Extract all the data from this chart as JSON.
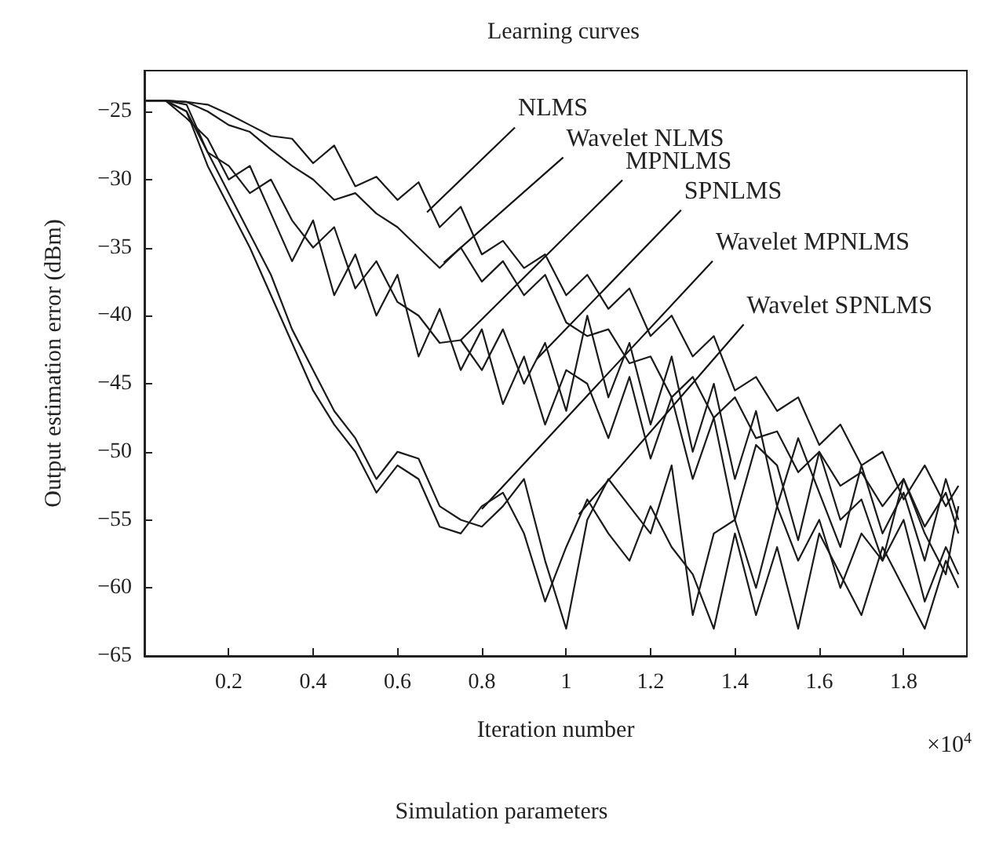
{
  "chart_data": {
    "type": "line",
    "title": "Learning curves",
    "xlabel": "Iteration number",
    "ylabel": "Output estimation error (dBm)",
    "x": [
      0,
      0.05,
      0.1,
      0.15,
      0.2,
      0.25,
      0.3,
      0.35,
      0.4,
      0.45,
      0.5,
      0.55,
      0.6,
      0.65,
      0.7,
      0.75,
      0.8,
      0.85,
      0.9,
      0.95,
      1.0,
      1.05,
      1.1,
      1.15,
      1.2,
      1.25,
      1.3,
      1.35,
      1.4,
      1.45,
      1.5,
      1.55,
      1.6,
      1.65,
      1.7,
      1.75,
      1.8,
      1.85,
      1.9,
      1.93
    ],
    "series": [
      {
        "color": "#1a1a1a",
        "values": [
          -24.2,
          -24.2,
          -24.3,
          -24.5,
          -25.2,
          -26.0,
          -26.8,
          -27.0,
          -28.8,
          -27.5,
          -30.5,
          -29.8,
          -31.5,
          -30.2,
          -33.5,
          -32.0,
          -35.5,
          -34.5,
          -36.5,
          -35.5,
          -38.5,
          -37.0,
          -39.5,
          -38.0,
          -41.5,
          -40.0,
          -43.0,
          -41.5,
          -45.5,
          -44.5,
          -47.0,
          -46.0,
          -49.5,
          -48.0,
          -51.0,
          -50.0,
          -53.5,
          -51.0,
          -54.0,
          -52.5
        ]
      },
      {
        "color": "#1a1a1a",
        "values": [
          -24.2,
          -24.2,
          -24.3,
          -25.0,
          -26.0,
          -26.5,
          -27.8,
          -29.0,
          -30.0,
          -31.5,
          -31.0,
          -32.5,
          -33.5,
          -35.0,
          -36.5,
          -35.0,
          -37.5,
          -36.0,
          -38.5,
          -37.0,
          -40.5,
          -41.5,
          -41.0,
          -43.5,
          -43.0,
          -46.0,
          -44.5,
          -47.5,
          -46.0,
          -49.0,
          -48.5,
          -51.5,
          -50.0,
          -52.5,
          -51.5,
          -54.0,
          -52.0,
          -55.5,
          -53.0,
          -56.0
        ]
      },
      {
        "color": "#1a1a1a",
        "values": [
          -24.2,
          -24.2,
          -25.0,
          -28.0,
          -29.0,
          -31.0,
          -30.0,
          -33.0,
          -35.0,
          -33.5,
          -38.0,
          -36.0,
          -39.0,
          -40.0,
          -42.0,
          -41.8,
          -44.0,
          -41.0,
          -45.0,
          -42.0,
          -47.0,
          -40.0,
          -46.0,
          -42.0,
          -48.0,
          -43.0,
          -50.0,
          -45.0,
          -52.0,
          -47.0,
          -54.0,
          -49.0,
          -53.0,
          -57.0,
          -51.0,
          -56.0,
          -53.0,
          -58.0,
          -52.0,
          -55.0
        ]
      },
      {
        "color": "#1a1a1a",
        "values": [
          -24.2,
          -24.2,
          -25.5,
          -27.0,
          -30.0,
          -29.0,
          -32.5,
          -36.0,
          -33.0,
          -38.5,
          -35.5,
          -40.0,
          -37.0,
          -43.0,
          -39.5,
          -44.0,
          -41.0,
          -46.5,
          -43.0,
          -48.0,
          -44.0,
          -45.0,
          -49.0,
          -44.5,
          -50.5,
          -46.0,
          -52.0,
          -47.5,
          -55.0,
          -49.5,
          -51.0,
          -56.5,
          -50.0,
          -55.0,
          -53.5,
          -58.0,
          -52.0,
          -56.0,
          -59.0,
          -54.0
        ]
      },
      {
        "color": "#1a1a1a",
        "values": [
          -24.2,
          -24.2,
          -24.5,
          -28.0,
          -31.0,
          -34.0,
          -37.0,
          -41.0,
          -44.0,
          -47.0,
          -49.0,
          -52.0,
          -50.0,
          -50.5,
          -54.0,
          -55.0,
          -55.5,
          -54.0,
          -52.0,
          -58.0,
          -63.0,
          -55.0,
          -52.0,
          -54.0,
          -56.0,
          -51.0,
          -62.0,
          -56.0,
          -55.0,
          -60.0,
          -54.0,
          -58.0,
          -55.0,
          -60.0,
          -56.0,
          -58.0,
          -55.0,
          -61.0,
          -57.0,
          -59.0
        ]
      },
      {
        "color": "#1a1a1a",
        "values": [
          -24.2,
          -24.2,
          -25.0,
          -29.0,
          -32.0,
          -35.0,
          -38.5,
          -42.0,
          -45.5,
          -48.0,
          -50.0,
          -53.0,
          -51.0,
          -52.0,
          -55.5,
          -56.0,
          -54.0,
          -53.0,
          -56.0,
          -61.0,
          -57.0,
          -53.5,
          -56.0,
          -58.0,
          -54.0,
          -57.0,
          -59.0,
          -63.0,
          -56.0,
          -62.0,
          -57.0,
          -63.0,
          -56.0,
          -59.0,
          -62.0,
          -57.0,
          -60.0,
          -63.0,
          -58.0,
          -60.0
        ]
      }
    ],
    "xlim": [
      0,
      1.95
    ],
    "ylim": [
      -65,
      -22
    ],
    "xticks": [
      0.2,
      0.4,
      0.6,
      0.8,
      1,
      1.2,
      1.4,
      1.6,
      1.8
    ],
    "yticks": [
      -65,
      -60,
      -55,
      -50,
      -45,
      -40,
      -35,
      -30,
      -25
    ],
    "grid": false,
    "marker": "none",
    "line_style": "solid",
    "annotations": [
      {
        "text": "NLMS",
        "x": 0.67,
        "y": -32.4
      },
      {
        "text": "Wavelet NLMS",
        "x": 0.71,
        "y": -36.1
      },
      {
        "text": "MPNLMS",
        "x": 0.75,
        "y": -41.8
      },
      {
        "text": "SPNLMS",
        "x": 0.93,
        "y": -43.2
      },
      {
        "text": "Wavelet MPNLMS",
        "x": 0.8,
        "y": -54.2
      },
      {
        "text": "Wavelet SPNLMS",
        "x": 1.03,
        "y": -54.6
      },
      "×10$^{4}$",
      "Simulation parameters"
    ]
  }
}
